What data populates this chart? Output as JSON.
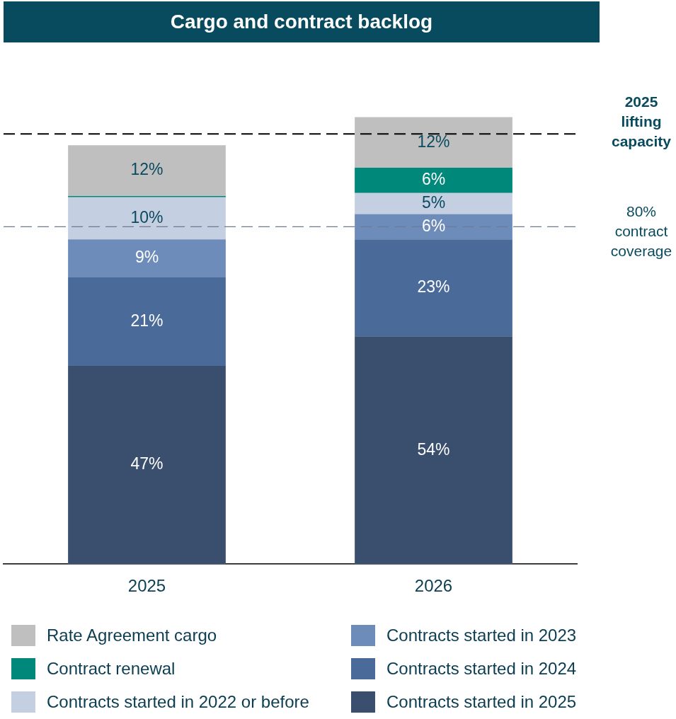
{
  "chart_data": {
    "type": "bar",
    "title": "Cargo and contract backlog",
    "stacked": true,
    "categories": [
      "2025",
      "2026"
    ],
    "series": [
      {
        "name": "Contracts started in 2025",
        "color": "#3a4e6e",
        "values": [
          47,
          54
        ],
        "value_labels": [
          "47%",
          "54%"
        ]
      },
      {
        "name": "Contracts started in 2024",
        "color": "#4a6b9a",
        "values": [
          21,
          23
        ],
        "value_labels": [
          "21%",
          "23%"
        ]
      },
      {
        "name": "Contracts started in 2023",
        "color": "#6d8cba",
        "values": [
          9,
          6
        ],
        "value_labels": [
          "9%",
          "6%"
        ]
      },
      {
        "name": "Contracts started in 2022 or before",
        "color": "#c5cfe2",
        "values": [
          10,
          5
        ],
        "value_labels": [
          "10%",
          "5%"
        ]
      },
      {
        "name": "Contract renewal",
        "color": "#00897b",
        "values": [
          0.3,
          6
        ],
        "value_labels": [
          null,
          "6%"
        ]
      },
      {
        "name": "Rate Agreement cargo",
        "color": "#bfbfbf",
        "values": [
          12,
          12
        ],
        "value_labels": [
          "12%",
          "12%"
        ]
      }
    ],
    "ref_lines": [
      {
        "axis": "y",
        "value": 102,
        "label": "2025 lifting capacity",
        "color": "#000000",
        "line_style": "dashed"
      },
      {
        "axis": "y",
        "value": 80,
        "label": "80% contract coverage",
        "color": "#6b7a99",
        "line_style": "dashed"
      }
    ],
    "grid": false,
    "legend": "bottom",
    "tick_labels": "x"
  }
}
